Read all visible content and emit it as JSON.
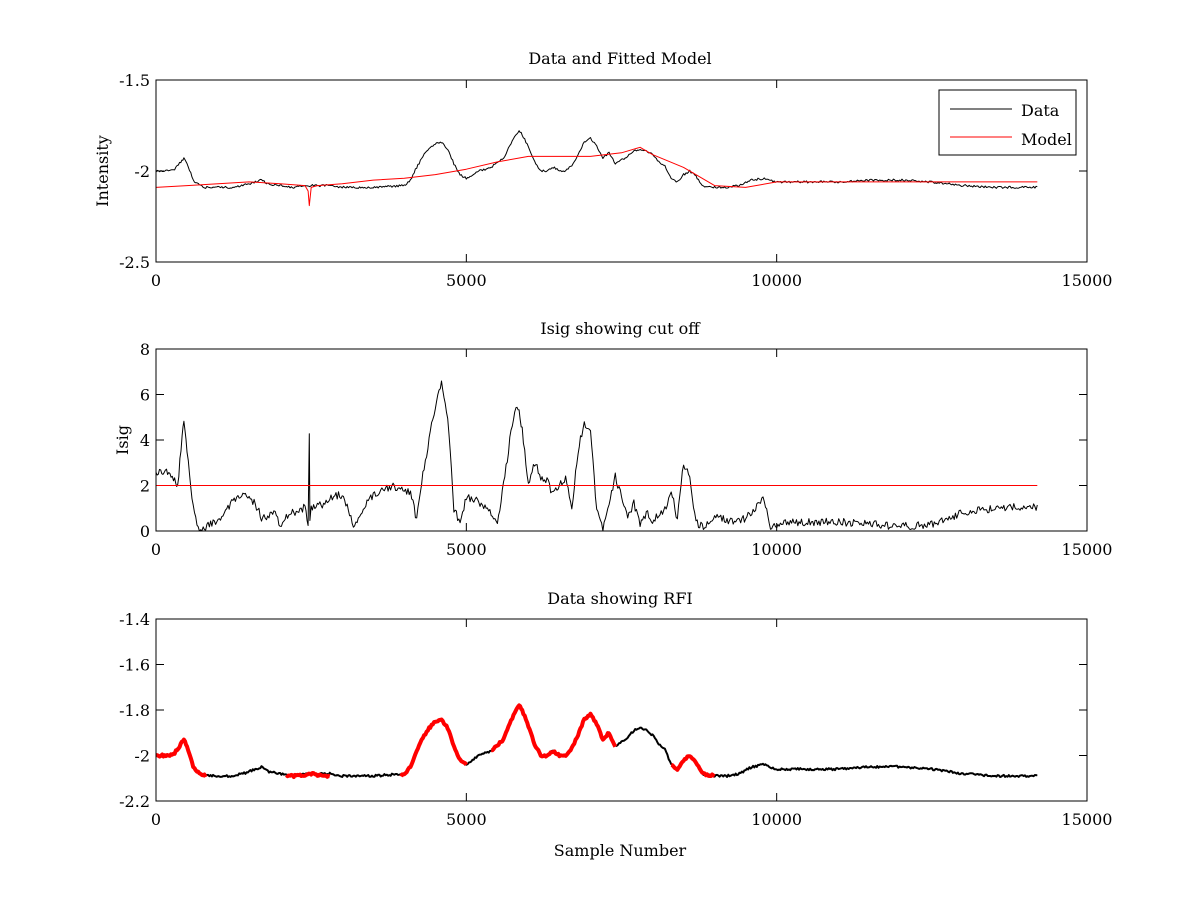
{
  "chart_data": [
    {
      "type": "line",
      "title": "Data and Fitted Model",
      "xlabel": "",
      "ylabel": "Intensity",
      "xlim": [
        0,
        15000
      ],
      "ylim": [
        -2.5,
        -1.5
      ],
      "xticks": [
        0,
        5000,
        10000,
        15000
      ],
      "yticks": [
        -2.5,
        -2,
        -1.5
      ],
      "xtick_labels": [
        "0",
        "5000",
        "10000",
        "15000"
      ],
      "ytick_labels": [
        "-2.5",
        "-2",
        "-1.5"
      ],
      "legend": {
        "position": "top-right",
        "entries": [
          "Data",
          "Model"
        ]
      },
      "series": [
        {
          "name": "Data",
          "color": "#000000",
          "x": [
            0,
            200,
            300,
            400,
            450,
            500,
            600,
            700,
            800,
            1000,
            1200,
            1400,
            1600,
            1700,
            1800,
            2000,
            2200,
            2400,
            2500,
            2800,
            3000,
            3500,
            4000,
            4100,
            4200,
            4300,
            4400,
            4500,
            4600,
            4700,
            4800,
            4900,
            5000,
            5200,
            5400,
            5600,
            5700,
            5800,
            5850,
            5900,
            6000,
            6100,
            6200,
            6300,
            6400,
            6500,
            6600,
            6700,
            6800,
            6900,
            7000,
            7100,
            7200,
            7300,
            7400,
            7500,
            7600,
            7700,
            7800,
            7900,
            8000,
            8100,
            8200,
            8300,
            8400,
            8500,
            8600,
            8700,
            8800,
            9000,
            9200,
            9400,
            9600,
            9800,
            10000,
            10500,
            11000,
            11500,
            12000,
            12500,
            13000,
            13500,
            14000,
            14200
          ],
          "y": [
            -2.0,
            -2.0,
            -1.99,
            -1.95,
            -1.93,
            -1.96,
            -2.05,
            -2.08,
            -2.09,
            -2.09,
            -2.09,
            -2.08,
            -2.06,
            -2.05,
            -2.07,
            -2.08,
            -2.09,
            -2.08,
            -2.08,
            -2.08,
            -2.09,
            -2.09,
            -2.08,
            -2.05,
            -1.98,
            -1.92,
            -1.88,
            -1.85,
            -1.84,
            -1.88,
            -1.96,
            -2.02,
            -2.04,
            -2.0,
            -1.98,
            -1.93,
            -1.86,
            -1.8,
            -1.78,
            -1.8,
            -1.87,
            -1.95,
            -2.0,
            -2.0,
            -1.98,
            -2.0,
            -2.0,
            -1.97,
            -1.91,
            -1.84,
            -1.82,
            -1.86,
            -1.93,
            -1.9,
            -1.96,
            -1.94,
            -1.92,
            -1.89,
            -1.88,
            -1.89,
            -1.91,
            -1.95,
            -1.97,
            -2.04,
            -2.06,
            -2.02,
            -2.0,
            -2.03,
            -2.08,
            -2.09,
            -2.09,
            -2.08,
            -2.05,
            -2.04,
            -2.06,
            -2.06,
            -2.06,
            -2.05,
            -2.05,
            -2.06,
            -2.08,
            -2.09,
            -2.09,
            -2.09
          ]
        },
        {
          "name": "Model",
          "color": "#ff0000",
          "x": [
            0,
            500,
            1000,
            1500,
            2000,
            2400,
            2450,
            2470,
            2500,
            2600,
            3000,
            3500,
            4000,
            4500,
            5000,
            5500,
            6000,
            6500,
            7000,
            7500,
            7800,
            8000,
            8500,
            9000,
            9500,
            10000,
            11000,
            12000,
            13000,
            14200
          ],
          "y": [
            -2.09,
            -2.08,
            -2.07,
            -2.06,
            -2.07,
            -2.08,
            -2.11,
            -2.19,
            -2.09,
            -2.08,
            -2.07,
            -2.05,
            -2.04,
            -2.02,
            -1.99,
            -1.95,
            -1.92,
            -1.92,
            -1.92,
            -1.9,
            -1.87,
            -1.91,
            -1.98,
            -2.08,
            -2.09,
            -2.06,
            -2.06,
            -2.06,
            -2.06,
            -2.06
          ]
        }
      ]
    },
    {
      "type": "line",
      "title": "Isig showing cut off",
      "xlabel": "",
      "ylabel": "Isig",
      "xlim": [
        0,
        15000
      ],
      "ylim": [
        0,
        8
      ],
      "xticks": [
        0,
        5000,
        10000,
        15000
      ],
      "yticks": [
        0,
        2,
        4,
        6,
        8
      ],
      "xtick_labels": [
        "0",
        "5000",
        "10000",
        "15000"
      ],
      "ytick_labels": [
        "0",
        "2",
        "4",
        "6",
        "8"
      ],
      "series": [
        {
          "name": "Isig",
          "color": "#000000",
          "x": [
            0,
            150,
            300,
            350,
            420,
            450,
            500,
            600,
            700,
            1000,
            1200,
            1400,
            1600,
            1700,
            1800,
            1900,
            2000,
            2200,
            2300,
            2400,
            2450,
            2470,
            2480,
            2500,
            2700,
            2800,
            3000,
            3200,
            3300,
            3500,
            3800,
            4100,
            4200,
            4300,
            4400,
            4500,
            4600,
            4700,
            4800,
            4900,
            5000,
            5200,
            5400,
            5500,
            5600,
            5700,
            5800,
            5850,
            5900,
            6000,
            6100,
            6200,
            6300,
            6400,
            6500,
            6600,
            6700,
            6800,
            6900,
            7000,
            7100,
            7200,
            7300,
            7400,
            7500,
            7600,
            7700,
            7800,
            7900,
            8000,
            8200,
            8300,
            8400,
            8500,
            8600,
            8700,
            8800,
            9000,
            9400,
            9600,
            9800,
            9900,
            10000,
            10500,
            11000,
            11500,
            12000,
            12500,
            13000,
            13500,
            14000,
            14200
          ],
          "y": [
            2.5,
            2.7,
            2.3,
            2.0,
            4.2,
            4.8,
            3.5,
            1.0,
            0.0,
            0.5,
            1.2,
            1.6,
            1.2,
            0.6,
            0.5,
            0.9,
            0.3,
            0.9,
            0.8,
            1.1,
            0.3,
            4.2,
            0.3,
            1.0,
            1.2,
            1.5,
            1.6,
            0.2,
            0.8,
            1.6,
            2.0,
            1.7,
            0.5,
            2.5,
            4.0,
            5.5,
            6.6,
            5.0,
            1.0,
            0.3,
            1.5,
            1.3,
            0.8,
            0.3,
            2.0,
            4.0,
            5.4,
            5.2,
            4.5,
            2.0,
            3.0,
            2.4,
            2.2,
            1.6,
            2.0,
            2.3,
            1.0,
            3.5,
            4.8,
            4.4,
            1.0,
            0.0,
            1.2,
            2.4,
            1.5,
            0.5,
            1.2,
            0.3,
            0.8,
            0.5,
            0.9,
            1.8,
            0.5,
            3.0,
            2.3,
            0.4,
            0.2,
            0.6,
            0.4,
            0.8,
            1.4,
            0.2,
            0.3,
            0.4,
            0.4,
            0.3,
            0.2,
            0.3,
            0.8,
            1.0,
            1.1,
            1.0
          ]
        },
        {
          "name": "Cut off",
          "color": "#ff0000",
          "x": [
            0,
            14200
          ],
          "y": [
            2,
            2
          ]
        }
      ]
    },
    {
      "type": "line",
      "title": "Data showing RFI",
      "xlabel": "Sample Number",
      "ylabel": "",
      "xlim": [
        0,
        15000
      ],
      "ylim": [
        -2.2,
        -1.4
      ],
      "xticks": [
        0,
        5000,
        10000,
        15000
      ],
      "yticks": [
        -2.2,
        -2,
        -1.8,
        -1.6,
        -1.4
      ],
      "xtick_labels": [
        "0",
        "5000",
        "10000",
        "15000"
      ],
      "ytick_labels": [
        "-2.2",
        "-2",
        "-1.8",
        "-1.6",
        "-1.4"
      ],
      "series": [
        {
          "name": "Data",
          "color": "#000000",
          "x": [
            0,
            200,
            300,
            400,
            450,
            500,
            600,
            700,
            800,
            1000,
            1200,
            1400,
            1600,
            1700,
            1800,
            2000,
            2200,
            2400,
            2500,
            2800,
            3000,
            3500,
            4000,
            4100,
            4200,
            4300,
            4400,
            4500,
            4600,
            4700,
            4800,
            4900,
            5000,
            5200,
            5400,
            5600,
            5700,
            5800,
            5850,
            5900,
            6000,
            6100,
            6200,
            6300,
            6400,
            6500,
            6600,
            6700,
            6800,
            6900,
            7000,
            7100,
            7200,
            7300,
            7400,
            7500,
            7600,
            7700,
            7800,
            7900,
            8000,
            8100,
            8200,
            8300,
            8400,
            8500,
            8600,
            8700,
            8800,
            9000,
            9200,
            9400,
            9600,
            9800,
            10000,
            10500,
            11000,
            11500,
            12000,
            12500,
            13000,
            13500,
            14000,
            14200
          ],
          "y": [
            -2.0,
            -2.0,
            -1.99,
            -1.95,
            -1.93,
            -1.96,
            -2.05,
            -2.08,
            -2.09,
            -2.09,
            -2.09,
            -2.08,
            -2.06,
            -2.05,
            -2.07,
            -2.08,
            -2.09,
            -2.08,
            -2.08,
            -2.08,
            -2.09,
            -2.09,
            -2.08,
            -2.05,
            -1.98,
            -1.92,
            -1.88,
            -1.85,
            -1.84,
            -1.88,
            -1.96,
            -2.02,
            -2.04,
            -2.0,
            -1.98,
            -1.93,
            -1.86,
            -1.8,
            -1.78,
            -1.8,
            -1.87,
            -1.95,
            -2.0,
            -2.0,
            -1.98,
            -2.0,
            -2.0,
            -1.97,
            -1.91,
            -1.84,
            -1.82,
            -1.86,
            -1.93,
            -1.9,
            -1.96,
            -1.94,
            -1.92,
            -1.89,
            -1.88,
            -1.89,
            -1.91,
            -1.95,
            -1.97,
            -2.04,
            -2.06,
            -2.02,
            -2.0,
            -2.03,
            -2.08,
            -2.09,
            -2.09,
            -2.08,
            -2.05,
            -2.04,
            -2.06,
            -2.06,
            -2.06,
            -2.05,
            -2.05,
            -2.06,
            -2.08,
            -2.09,
            -2.09,
            -2.09
          ]
        },
        {
          "name": "RFI",
          "color": "#ff0000",
          "segments": [
            {
              "x": [
                0,
                200,
                300,
                400,
                450,
                500,
                600,
                700,
                800
              ],
              "y": [
                -2.0,
                -2.0,
                -1.99,
                -1.95,
                -1.93,
                -1.96,
                -2.05,
                -2.08,
                -2.09
              ]
            },
            {
              "x": [
                2100,
                2300,
                2500,
                2700,
                2800
              ],
              "y": [
                -2.09,
                -2.09,
                -2.08,
                -2.09,
                -2.09
              ]
            },
            {
              "x": [
                3950,
                4000,
                4100,
                4200,
                4300,
                4400,
                4500,
                4600,
                4700,
                4800,
                4900,
                5000
              ],
              "y": [
                -2.09,
                -2.08,
                -2.05,
                -1.98,
                -1.92,
                -1.88,
                -1.85,
                -1.84,
                -1.88,
                -1.96,
                -2.02,
                -2.04
              ]
            },
            {
              "x": [
                5400,
                5600,
                5700,
                5800,
                5850,
                5900,
                6000,
                6100,
                6200,
                6300,
                6400,
                6500,
                6600,
                6700,
                6800,
                6900,
                7000,
                7100,
                7200,
                7300,
                7400
              ],
              "y": [
                -1.98,
                -1.93,
                -1.86,
                -1.8,
                -1.78,
                -1.8,
                -1.87,
                -1.95,
                -2.0,
                -2.0,
                -1.98,
                -2.0,
                -2.0,
                -1.97,
                -1.91,
                -1.84,
                -1.82,
                -1.86,
                -1.93,
                -1.9,
                -1.96
              ]
            },
            {
              "x": [
                8300,
                8400,
                8500,
                8600,
                8700,
                8800,
                9000
              ],
              "y": [
                -2.04,
                -2.06,
                -2.02,
                -2.0,
                -2.03,
                -2.08,
                -2.09
              ]
            }
          ]
        }
      ]
    }
  ]
}
